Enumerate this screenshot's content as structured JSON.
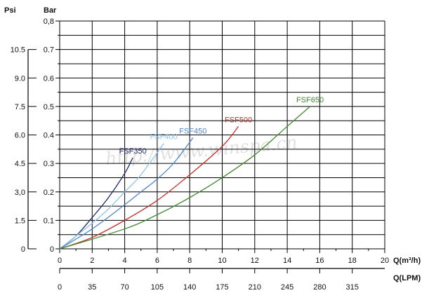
{
  "chart_data": {
    "type": "line",
    "x": {
      "label": "Q(m³/h)",
      "min": 0,
      "max": 20,
      "ticks": [
        0,
        2,
        4,
        6,
        8,
        10,
        12,
        14,
        16,
        18,
        20
      ],
      "tick_labels": [
        "0",
        "2",
        "4",
        "6",
        "8",
        "10",
        "12",
        "14",
        "16",
        "18",
        "20"
      ],
      "minor_ticks": [
        1,
        3,
        5,
        7,
        9,
        11,
        13,
        15,
        17,
        19
      ]
    },
    "x2": {
      "label": "Q(LPM)",
      "min": 0,
      "max": 350,
      "ticks": [
        0,
        35,
        70,
        105,
        140,
        175,
        210,
        245,
        280,
        315
      ],
      "tick_labels": [
        "0",
        "35",
        "70",
        "105",
        "140",
        "175",
        "210",
        "245",
        "280",
        "315"
      ]
    },
    "y": {
      "label": "Bar",
      "min": 0,
      "max": 0.8,
      "ticks": [
        0,
        0.1,
        0.2,
        0.3,
        0.4,
        0.5,
        0.6,
        0.7,
        0.8
      ],
      "tick_labels": [
        "0",
        "0.1",
        "0.2",
        "0.3",
        "0.4",
        "0.5",
        "0.6",
        "0.7",
        "0,8"
      ],
      "minor_ticks": [
        0.05,
        0.15,
        0.25,
        0.35,
        0.45,
        0.55,
        0.65,
        0.75
      ]
    },
    "y2": {
      "label": "Psi",
      "min": 0,
      "max": 12,
      "ticks": [
        0,
        1.5,
        3,
        4.5,
        6,
        7.5,
        9,
        10.5
      ],
      "tick_labels": [
        "0",
        "1.5",
        "3,0",
        "4.5",
        "6.0",
        "7.5",
        "9.0",
        "10.5"
      ]
    },
    "grid": true,
    "series": [
      {
        "name": "FSF350",
        "color": "#1c2766",
        "x": [
          0,
          1,
          2,
          3,
          4,
          4.5
        ],
        "y": [
          0,
          0.045,
          0.11,
          0.18,
          0.265,
          0.32
        ]
      },
      {
        "name": "FSF400",
        "color": "#8ec6ea",
        "x": [
          0,
          2,
          3,
          4,
          5,
          6.4
        ],
        "y": [
          0,
          0.09,
          0.14,
          0.2,
          0.26,
          0.37
        ]
      },
      {
        "name": "FSF450",
        "color": "#4f86c6",
        "x": [
          0,
          2,
          4,
          5,
          6,
          7,
          8.2
        ],
        "y": [
          0,
          0.07,
          0.155,
          0.2,
          0.245,
          0.3,
          0.39
        ]
      },
      {
        "name": "FSF500",
        "color": "#c0302b",
        "x": [
          0,
          2,
          4,
          6,
          8,
          10,
          11
        ],
        "y": [
          0,
          0.04,
          0.1,
          0.17,
          0.26,
          0.36,
          0.43
        ]
      },
      {
        "name": "FSF650",
        "color": "#3f8a2e",
        "x": [
          0,
          4,
          6,
          8,
          10,
          12,
          14,
          15.4
        ],
        "y": [
          0,
          0.07,
          0.12,
          0.18,
          0.25,
          0.33,
          0.43,
          0.5
        ]
      }
    ]
  },
  "watermark": "http://www.winspa.cn"
}
